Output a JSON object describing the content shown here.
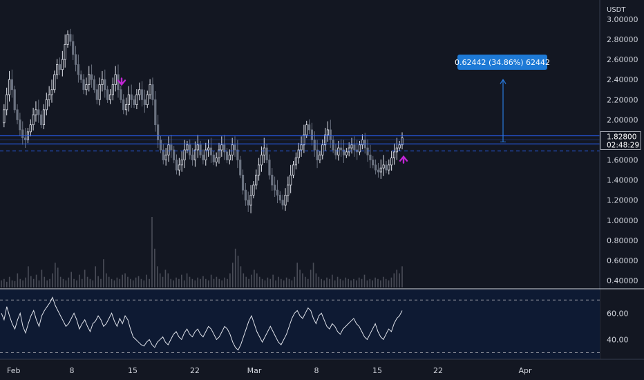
{
  "chart_data": {
    "type": "candlestick",
    "price_axis": {
      "unit": "USDT",
      "ticks": [
        "3.00000",
        "2.80000",
        "2.60000",
        "2.40000",
        "2.20000",
        "2.00000",
        "1.80000",
        "1.60000",
        "1.40000",
        "1.20000",
        "1.00000",
        "0.80000",
        "0.60000",
        "0.40000"
      ],
      "range": [
        0.3,
        3.07
      ]
    },
    "time_axis": {
      "labels": [
        "Feb",
        "8",
        "15",
        "22",
        "Mar",
        "8",
        "15",
        "22",
        "Apr"
      ]
    },
    "last_price": {
      "value": "1.82800",
      "countdown": "02:48:29"
    },
    "measure": {
      "label": "0.62442 (34.86%) 62442",
      "from": 1.78,
      "to": 2.4
    },
    "levels": {
      "resistance_top": 1.84,
      "resistance_bottom": 1.76,
      "support_dashed": 1.69
    },
    "signals": [
      {
        "type": "sell-arrow",
        "price": 2.33
      },
      {
        "type": "buy-arrow",
        "price": 1.64
      }
    ],
    "price_path": [
      1.97,
      2.1,
      2.25,
      2.4,
      2.3,
      2.1,
      2.0,
      1.9,
      1.82,
      1.8,
      1.88,
      1.95,
      2.05,
      2.1,
      2.05,
      1.95,
      2.1,
      2.2,
      2.25,
      2.3,
      2.45,
      2.55,
      2.5,
      2.6,
      2.75,
      2.85,
      2.78,
      2.65,
      2.55,
      2.45,
      2.4,
      2.3,
      2.35,
      2.45,
      2.4,
      2.3,
      2.2,
      2.35,
      2.4,
      2.3,
      2.2,
      2.25,
      2.35,
      2.45,
      2.3,
      2.2,
      2.1,
      2.15,
      2.25,
      2.2,
      2.15,
      2.25,
      2.3,
      2.2,
      2.15,
      2.25,
      2.35,
      2.2,
      1.95,
      1.8,
      1.7,
      1.6,
      1.65,
      1.75,
      1.7,
      1.6,
      1.5,
      1.55,
      1.6,
      1.7,
      1.75,
      1.65,
      1.6,
      1.7,
      1.75,
      1.65,
      1.6,
      1.7,
      1.72,
      1.65,
      1.58,
      1.62,
      1.7,
      1.75,
      1.68,
      1.6,
      1.65,
      1.75,
      1.7,
      1.6,
      1.45,
      1.3,
      1.2,
      1.15,
      1.25,
      1.35,
      1.45,
      1.55,
      1.65,
      1.72,
      1.6,
      1.45,
      1.35,
      1.3,
      1.25,
      1.2,
      1.15,
      1.25,
      1.35,
      1.45,
      1.55,
      1.62,
      1.7,
      1.75,
      1.85,
      1.95,
      1.9,
      1.8,
      1.7,
      1.6,
      1.65,
      1.75,
      1.85,
      1.9,
      1.8,
      1.7,
      1.65,
      1.72,
      1.7,
      1.65,
      1.68,
      1.72,
      1.75,
      1.7,
      1.68,
      1.75,
      1.8,
      1.72,
      1.65,
      1.6,
      1.55,
      1.5,
      1.48,
      1.52,
      1.55,
      1.5,
      1.55,
      1.62,
      1.68,
      1.72,
      1.75,
      1.82
    ],
    "volume_path": [
      0.1,
      0.12,
      0.08,
      0.15,
      0.1,
      0.09,
      0.2,
      0.12,
      0.1,
      0.14,
      0.3,
      0.16,
      0.12,
      0.18,
      0.1,
      0.25,
      0.15,
      0.1,
      0.12,
      0.2,
      0.35,
      0.28,
      0.15,
      0.12,
      0.1,
      0.14,
      0.22,
      0.12,
      0.1,
      0.18,
      0.12,
      0.25,
      0.15,
      0.12,
      0.1,
      0.3,
      0.16,
      0.12,
      0.4,
      0.2,
      0.15,
      0.12,
      0.1,
      0.14,
      0.12,
      0.18,
      0.2,
      0.15,
      0.12,
      0.1,
      0.14,
      0.16,
      0.12,
      0.1,
      0.18,
      0.12,
      1.0,
      0.55,
      0.3,
      0.2,
      0.15,
      0.25,
      0.2,
      0.12,
      0.1,
      0.14,
      0.12,
      0.18,
      0.1,
      0.2,
      0.15,
      0.12,
      0.1,
      0.14,
      0.12,
      0.16,
      0.12,
      0.1,
      0.18,
      0.12,
      0.15,
      0.12,
      0.1,
      0.14,
      0.12,
      0.2,
      0.35,
      0.55,
      0.45,
      0.3,
      0.2,
      0.15,
      0.12,
      0.18,
      0.25,
      0.2,
      0.15,
      0.12,
      0.1,
      0.14,
      0.12,
      0.18,
      0.1,
      0.15,
      0.12,
      0.1,
      0.14,
      0.12,
      0.1,
      0.15,
      0.35,
      0.25,
      0.2,
      0.15,
      0.12,
      0.25,
      0.35,
      0.2,
      0.15,
      0.12,
      0.1,
      0.14,
      0.12,
      0.18,
      0.1,
      0.15,
      0.12,
      0.1,
      0.14,
      0.12,
      0.1,
      0.12,
      0.1,
      0.14,
      0.12,
      0.18,
      0.1,
      0.12,
      0.1,
      0.14,
      0.12,
      0.1,
      0.15,
      0.12,
      0.1,
      0.14,
      0.2,
      0.25,
      0.2,
      0.3
    ],
    "indicator": {
      "ticks": [
        "60.00",
        "40.00"
      ],
      "range": [
        25,
        78
      ],
      "band_upper": 70,
      "band_lower": 30,
      "path": [
        60,
        55,
        65,
        58,
        52,
        48,
        55,
        60,
        50,
        45,
        52,
        58,
        62,
        55,
        50,
        58,
        62,
        65,
        68,
        72,
        66,
        62,
        58,
        54,
        50,
        52,
        56,
        60,
        55,
        48,
        52,
        55,
        50,
        46,
        52,
        54,
        58,
        55,
        50,
        52,
        56,
        60,
        54,
        50,
        56,
        52,
        58,
        55,
        48,
        42,
        40,
        38,
        36,
        35,
        38,
        40,
        36,
        34,
        38,
        40,
        42,
        38,
        36,
        40,
        44,
        46,
        42,
        40,
        45,
        48,
        44,
        42,
        46,
        48,
        44,
        42,
        46,
        50,
        48,
        44,
        40,
        42,
        46,
        50,
        48,
        44,
        38,
        34,
        32,
        36,
        42,
        48,
        54,
        58,
        52,
        46,
        42,
        38,
        42,
        46,
        50,
        46,
        42,
        38,
        36,
        40,
        44,
        50,
        56,
        60,
        62,
        58,
        56,
        60,
        64,
        62,
        56,
        52,
        58,
        60,
        55,
        50,
        48,
        52,
        50,
        46,
        44,
        48,
        50,
        52,
        54,
        56,
        52,
        50,
        46,
        42,
        40,
        44,
        48,
        52,
        46,
        42,
        40,
        44,
        48,
        46,
        52,
        56,
        58,
        62
      ]
    }
  }
}
